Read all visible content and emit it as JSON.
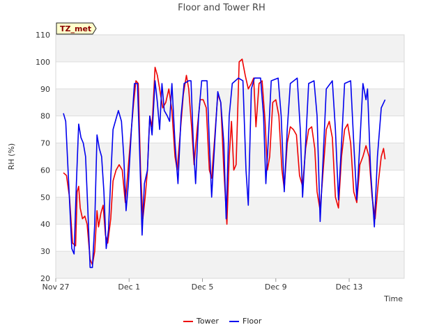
{
  "chart_data": {
    "type": "line",
    "title": "Floor and Tower RH",
    "xlabel": "Time",
    "ylabel": "RH (%)",
    "ylim": [
      20,
      110
    ],
    "yticks": [
      20,
      30,
      40,
      50,
      60,
      70,
      80,
      90,
      100,
      110
    ],
    "xlim": [
      "2023-11-27",
      "2023-12-16"
    ],
    "xticks": [
      {
        "date": "2023-11-27",
        "label": "Nov 27"
      },
      {
        "date": "2023-12-01",
        "label": "Dec 1"
      },
      {
        "date": "2023-12-05",
        "label": "Dec 5"
      },
      {
        "date": "2023-12-09",
        "label": "Dec 9"
      },
      {
        "date": "2023-12-13",
        "label": "Dec 13"
      }
    ],
    "grid": true,
    "legend_position": "bottom-center",
    "site_tag": "TZ_met",
    "series": [
      {
        "name": "Tower",
        "color": "#ee0000",
        "points": [
          [
            "2023-11-27 10:00",
            59
          ],
          [
            "2023-11-27 14:00",
            58
          ],
          [
            "2023-11-27 18:00",
            50
          ],
          [
            "2023-11-27 22:00",
            33
          ],
          [
            "2023-11-28 02:00",
            32
          ],
          [
            "2023-11-28 04:00",
            52
          ],
          [
            "2023-11-28 06:00",
            54
          ],
          [
            "2023-11-28 08:00",
            46
          ],
          [
            "2023-11-28 11:00",
            42
          ],
          [
            "2023-11-28 14:00",
            43
          ],
          [
            "2023-11-28 17:00",
            40
          ],
          [
            "2023-11-28 21:00",
            27
          ],
          [
            "2023-11-29 00:00",
            25
          ],
          [
            "2023-11-29 03:00",
            30
          ],
          [
            "2023-11-29 06:00",
            45
          ],
          [
            "2023-11-29 08:00",
            39
          ],
          [
            "2023-11-29 11:00",
            44
          ],
          [
            "2023-11-29 14:00",
            47
          ],
          [
            "2023-11-29 17:00",
            36
          ],
          [
            "2023-11-29 20:00",
            33
          ],
          [
            "2023-11-30 00:00",
            42
          ],
          [
            "2023-11-30 03:00",
            56
          ],
          [
            "2023-11-30 07:00",
            60
          ],
          [
            "2023-11-30 11:00",
            62
          ],
          [
            "2023-11-30 15:00",
            60
          ],
          [
            "2023-11-30 19:00",
            48
          ],
          [
            "2023-11-30 22:00",
            58
          ],
          [
            "2023-12-01 02:00",
            72
          ],
          [
            "2023-12-01 06:00",
            85
          ],
          [
            "2023-12-01 09:00",
            93
          ],
          [
            "2023-12-01 12:00",
            92
          ],
          [
            "2023-12-01 15:00",
            60
          ],
          [
            "2023-12-01 18:00",
            42
          ],
          [
            "2023-12-01 21:00",
            50
          ],
          [
            "2023-12-02 00:00",
            60
          ],
          [
            "2023-12-02 03:00",
            80
          ],
          [
            "2023-12-02 06:00",
            76
          ],
          [
            "2023-12-02 10:00",
            98
          ],
          [
            "2023-12-02 13:00",
            95
          ],
          [
            "2023-12-02 16:00",
            90
          ],
          [
            "2023-12-02 20:00",
            83
          ],
          [
            "2023-12-03 00:00",
            85
          ],
          [
            "2023-12-03 04:00",
            90
          ],
          [
            "2023-12-03 08:00",
            82
          ],
          [
            "2023-12-03 12:00",
            65
          ],
          [
            "2023-12-03 15:00",
            60
          ],
          [
            "2023-12-03 19:00",
            74
          ],
          [
            "2023-12-03 23:00",
            88
          ],
          [
            "2023-12-04 03:00",
            95
          ],
          [
            "2023-12-04 06:00",
            90
          ],
          [
            "2023-12-04 10:00",
            75
          ],
          [
            "2023-12-04 13:00",
            62
          ],
          [
            "2023-12-04 17:00",
            75
          ],
          [
            "2023-12-04 21:00",
            86
          ],
          [
            "2023-12-05 01:00",
            86
          ],
          [
            "2023-12-05 05:00",
            83
          ],
          [
            "2023-12-05 09:00",
            60
          ],
          [
            "2023-12-05 12:00",
            57
          ],
          [
            "2023-12-05 16:00",
            72
          ],
          [
            "2023-12-05 20:00",
            88
          ],
          [
            "2023-12-06 00:00",
            85
          ],
          [
            "2023-12-06 04:00",
            60
          ],
          [
            "2023-12-06 08:00",
            40
          ],
          [
            "2023-12-06 11:00",
            65
          ],
          [
            "2023-12-06 14:00",
            78
          ],
          [
            "2023-12-06 17:00",
            60
          ],
          [
            "2023-12-06 20:00",
            62
          ],
          [
            "2023-12-07 00:00",
            100
          ],
          [
            "2023-12-07 04:00",
            101
          ],
          [
            "2023-12-07 08:00",
            95
          ],
          [
            "2023-12-07 12:00",
            90
          ],
          [
            "2023-12-07 16:00",
            92
          ],
          [
            "2023-12-07 19:00",
            94
          ],
          [
            "2023-12-07 22:00",
            76
          ],
          [
            "2023-12-08 02:00",
            92
          ],
          [
            "2023-12-08 06:00",
            93
          ],
          [
            "2023-12-08 10:00",
            78
          ],
          [
            "2023-12-08 13:00",
            60
          ],
          [
            "2023-12-08 16:00",
            65
          ],
          [
            "2023-12-08 20:00",
            85
          ],
          [
            "2023-12-09 00:00",
            86
          ],
          [
            "2023-12-09 04:00",
            80
          ],
          [
            "2023-12-09 08:00",
            60
          ],
          [
            "2023-12-09 11:00",
            53
          ],
          [
            "2023-12-09 15:00",
            70
          ],
          [
            "2023-12-09 19:00",
            76
          ],
          [
            "2023-12-09 23:00",
            75
          ],
          [
            "2023-12-10 03:00",
            73
          ],
          [
            "2023-12-10 07:00",
            58
          ],
          [
            "2023-12-10 11:00",
            54
          ],
          [
            "2023-12-10 15:00",
            68
          ],
          [
            "2023-12-10 19:00",
            75
          ],
          [
            "2023-12-10 23:00",
            76
          ],
          [
            "2023-12-11 03:00",
            68
          ],
          [
            "2023-12-11 06:00",
            52
          ],
          [
            "2023-12-11 10:00",
            45
          ],
          [
            "2023-12-11 14:00",
            60
          ],
          [
            "2023-12-11 18:00",
            75
          ],
          [
            "2023-12-11 22:00",
            78
          ],
          [
            "2023-12-12 02:00",
            72
          ],
          [
            "2023-12-12 06:00",
            50
          ],
          [
            "2023-12-12 10:00",
            46
          ],
          [
            "2023-12-12 14:00",
            65
          ],
          [
            "2023-12-12 18:00",
            75
          ],
          [
            "2023-12-12 22:00",
            77
          ],
          [
            "2023-12-13 02:00",
            70
          ],
          [
            "2023-12-13 06:00",
            52
          ],
          [
            "2023-12-13 10:00",
            48
          ],
          [
            "2023-12-13 14:00",
            62
          ],
          [
            "2023-12-13 18:00",
            65
          ],
          [
            "2023-12-13 22:00",
            69
          ],
          [
            "2023-12-14 02:00",
            65
          ],
          [
            "2023-12-14 06:00",
            50
          ],
          [
            "2023-12-14 10:00",
            42
          ],
          [
            "2023-12-14 14:00",
            55
          ],
          [
            "2023-12-14 18:00",
            65
          ],
          [
            "2023-12-14 21:00",
            68
          ],
          [
            "2023-12-14 23:00",
            64
          ]
        ]
      },
      {
        "name": "Floor",
        "color": "#0000ee",
        "points": [
          [
            "2023-11-27 10:00",
            81
          ],
          [
            "2023-11-27 13:00",
            78
          ],
          [
            "2023-11-27 17:00",
            55
          ],
          [
            "2023-11-27 21:00",
            31
          ],
          [
            "2023-11-28 00:00",
            29
          ],
          [
            "2023-11-28 03:00",
            55
          ],
          [
            "2023-11-28 06:00",
            77
          ],
          [
            "2023-11-28 09:00",
            72
          ],
          [
            "2023-11-28 12:00",
            70
          ],
          [
            "2023-11-28 15:00",
            65
          ],
          [
            "2023-11-28 18:00",
            45
          ],
          [
            "2023-11-28 21:00",
            24
          ],
          [
            "2023-11-29 00:00",
            24
          ],
          [
            "2023-11-29 03:00",
            40
          ],
          [
            "2023-11-29 06:00",
            73
          ],
          [
            "2023-11-29 09:00",
            68
          ],
          [
            "2023-11-29 12:00",
            65
          ],
          [
            "2023-11-29 15:00",
            52
          ],
          [
            "2023-11-29 18:00",
            31
          ],
          [
            "2023-11-29 21:00",
            38
          ],
          [
            "2023-11-30 00:00",
            57
          ],
          [
            "2023-11-30 03:00",
            75
          ],
          [
            "2023-11-30 06:00",
            78
          ],
          [
            "2023-11-30 10:00",
            82
          ],
          [
            "2023-11-30 14:00",
            78
          ],
          [
            "2023-11-30 17:00",
            65
          ],
          [
            "2023-11-30 20:00",
            45
          ],
          [
            "2023-11-30 23:00",
            55
          ],
          [
            "2023-12-01 03:00",
            75
          ],
          [
            "2023-12-01 07:00",
            92
          ],
          [
            "2023-12-01 11:00",
            92
          ],
          [
            "2023-12-01 14:00",
            65
          ],
          [
            "2023-12-01 17:00",
            36
          ],
          [
            "2023-12-01 20:00",
            55
          ],
          [
            "2023-12-02 00:00",
            60
          ],
          [
            "2023-12-02 03:00",
            80
          ],
          [
            "2023-12-02 06:00",
            73
          ],
          [
            "2023-12-02 10:00",
            93
          ],
          [
            "2023-12-02 13:00",
            85
          ],
          [
            "2023-12-02 16:00",
            75
          ],
          [
            "2023-12-02 19:00",
            92
          ],
          [
            "2023-12-02 22:00",
            82
          ],
          [
            "2023-12-03 02:00",
            80
          ],
          [
            "2023-12-03 05:00",
            78
          ],
          [
            "2023-12-03 08:00",
            92
          ],
          [
            "2023-12-03 12:00",
            70
          ],
          [
            "2023-12-03 16:00",
            55
          ],
          [
            "2023-12-03 20:00",
            80
          ],
          [
            "2023-12-04 00:00",
            92
          ],
          [
            "2023-12-04 06:00",
            93
          ],
          [
            "2023-12-04 09:00",
            93
          ],
          [
            "2023-12-04 12:00",
            70
          ],
          [
            "2023-12-04 15:00",
            55
          ],
          [
            "2023-12-04 19:00",
            80
          ],
          [
            "2023-12-04 23:00",
            93
          ],
          [
            "2023-12-05 06:00",
            93
          ],
          [
            "2023-12-05 09:00",
            70
          ],
          [
            "2023-12-05 12:00",
            50
          ],
          [
            "2023-12-05 16:00",
            70
          ],
          [
            "2023-12-05 20:00",
            89
          ],
          [
            "2023-12-06 00:00",
            85
          ],
          [
            "2023-12-06 04:00",
            70
          ],
          [
            "2023-12-06 07:00",
            42
          ],
          [
            "2023-12-06 11:00",
            80
          ],
          [
            "2023-12-06 15:00",
            92
          ],
          [
            "2023-12-06 19:00",
            93
          ],
          [
            "2023-12-06 23:00",
            94
          ],
          [
            "2023-12-07 05:00",
            93
          ],
          [
            "2023-12-07 09:00",
            60
          ],
          [
            "2023-12-07 12:00",
            47
          ],
          [
            "2023-12-07 16:00",
            90
          ],
          [
            "2023-12-07 20:00",
            94
          ],
          [
            "2023-12-08 04:00",
            94
          ],
          [
            "2023-12-08 08:00",
            80
          ],
          [
            "2023-12-08 11:00",
            55
          ],
          [
            "2023-12-08 14:00",
            70
          ],
          [
            "2023-12-08 18:00",
            93
          ],
          [
            "2023-12-09 03:00",
            94
          ],
          [
            "2023-12-09 07:00",
            80
          ],
          [
            "2023-12-09 11:00",
            52
          ],
          [
            "2023-12-09 15:00",
            75
          ],
          [
            "2023-12-09 19:00",
            92
          ],
          [
            "2023-12-10 04:00",
            94
          ],
          [
            "2023-12-10 08:00",
            75
          ],
          [
            "2023-12-10 11:00",
            50
          ],
          [
            "2023-12-10 15:00",
            70
          ],
          [
            "2023-12-10 19:00",
            92
          ],
          [
            "2023-12-11 02:00",
            93
          ],
          [
            "2023-12-11 06:00",
            80
          ],
          [
            "2023-12-11 10:00",
            41
          ],
          [
            "2023-12-11 14:00",
            65
          ],
          [
            "2023-12-11 18:00",
            90
          ],
          [
            "2023-12-12 02:00",
            93
          ],
          [
            "2023-12-12 06:00",
            75
          ],
          [
            "2023-12-12 10:00",
            49
          ],
          [
            "2023-12-12 14:00",
            70
          ],
          [
            "2023-12-12 18:00",
            92
          ],
          [
            "2023-12-13 02:00",
            93
          ],
          [
            "2023-12-13 06:00",
            70
          ],
          [
            "2023-12-13 10:00",
            49
          ],
          [
            "2023-12-13 14:00",
            70
          ],
          [
            "2023-12-13 18:00",
            92
          ],
          [
            "2023-12-13 22:00",
            86
          ],
          [
            "2023-12-14 00:00",
            90
          ],
          [
            "2023-12-14 04:00",
            60
          ],
          [
            "2023-12-14 09:00",
            39
          ],
          [
            "2023-12-14 13:00",
            65
          ],
          [
            "2023-12-14 18:00",
            83
          ],
          [
            "2023-12-14 23:00",
            86
          ]
        ]
      }
    ]
  }
}
